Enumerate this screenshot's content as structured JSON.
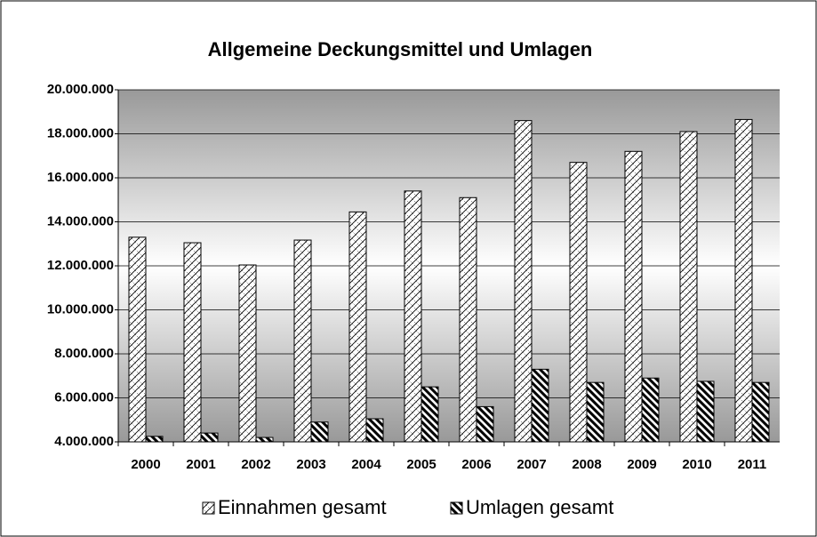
{
  "chart_data": {
    "type": "bar",
    "title": "Allgemeine Deckungsmittel und Umlagen",
    "categories": [
      "2000",
      "2001",
      "2002",
      "2003",
      "2004",
      "2005",
      "2006",
      "2007",
      "2008",
      "2009",
      "2010",
      "2011"
    ],
    "series": [
      {
        "name": "Einnahmen gesamt",
        "color": "#000000",
        "values": [
          13300000,
          13050000,
          12040000,
          13170000,
          14450000,
          15400000,
          15100000,
          18600000,
          16700000,
          17200000,
          18100000,
          18650000
        ]
      },
      {
        "name": "Umlagen gesamt",
        "color": "#000000",
        "values": [
          4250000,
          4400000,
          4200000,
          4900000,
          5050000,
          6500000,
          5600000,
          7300000,
          6700000,
          6900000,
          6750000,
          6700000
        ]
      }
    ],
    "ylim": [
      4000000,
      20000000
    ],
    "yticks": [
      {
        "value": 4000000,
        "label": "4.000.000"
      },
      {
        "value": 6000000,
        "label": "6.000.000"
      },
      {
        "value": 8000000,
        "label": "8.000.000"
      },
      {
        "value": 10000000,
        "label": "10.000.000"
      },
      {
        "value": 12000000,
        "label": "12.000.000"
      },
      {
        "value": 14000000,
        "label": "14.000.000"
      },
      {
        "value": 16000000,
        "label": "16.000.000"
      },
      {
        "value": 18000000,
        "label": "18.000.000"
      },
      {
        "value": 20000000,
        "label": "20.000.000"
      }
    ],
    "grid": true,
    "legend": "bottom"
  }
}
